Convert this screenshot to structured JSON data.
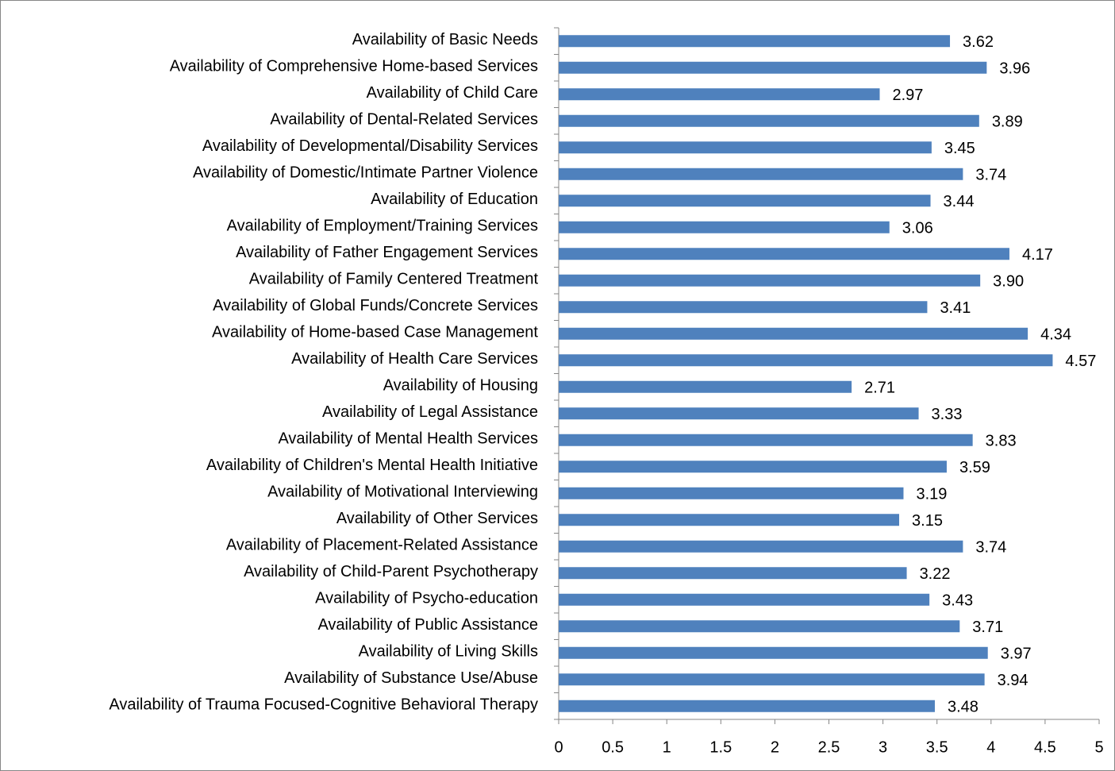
{
  "chart_data": {
    "type": "barh",
    "categories": [
      "Availability of Basic Needs",
      "Availability of Comprehensive Home-based Services",
      "Availability of Child Care",
      "Availability of Dental-Related Services",
      "Availability of Developmental/Disability Services",
      "Availability of Domestic/Intimate Partner Violence",
      "Availability of Education",
      "Availability of Employment/Training Services",
      "Availability of Father Engagement Services",
      "Availability of Family Centered Treatment",
      "Availability of Global Funds/Concrete Services",
      "Availability of Home-based Case Management",
      "Availability of Health Care Services",
      "Availability of Housing",
      "Availability of Legal Assistance",
      "Availability of Mental Health Services",
      "Availability of Children's Mental Health Initiative",
      "Availability of Motivational Interviewing",
      "Availability of Other Services",
      "Availability of Placement-Related Assistance",
      "Availability of Child-Parent Psychotherapy",
      "Availability of Psycho-education",
      "Availability of Public Assistance",
      "Availability of Living Skills",
      "Availability of Substance Use/Abuse",
      "Availability of Trauma Focused-Cognitive Behavioral Therapy"
    ],
    "values": [
      3.62,
      3.96,
      2.97,
      3.89,
      3.45,
      3.74,
      3.44,
      3.06,
      4.17,
      3.9,
      3.41,
      4.34,
      4.57,
      2.71,
      3.33,
      3.83,
      3.59,
      3.19,
      3.15,
      3.74,
      3.22,
      3.43,
      3.71,
      3.97,
      3.94,
      3.48
    ],
    "value_labels": [
      "3.62",
      "3.96",
      "2.97",
      "3.89",
      "3.45",
      "3.74",
      "3.44",
      "3.06",
      "4.17",
      "3.90",
      "3.41",
      "4.34",
      "4.57",
      "2.71",
      "3.33",
      "3.83",
      "3.59",
      "3.19",
      "3.15",
      "3.74",
      "3.22",
      "3.43",
      "3.71",
      "3.97",
      "3.94",
      "3.48"
    ],
    "color": "#4f81bd",
    "xlim": [
      0,
      5
    ],
    "xticks": [
      0,
      0.5,
      1,
      1.5,
      2,
      2.5,
      3,
      3.5,
      4,
      4.5,
      5
    ]
  }
}
